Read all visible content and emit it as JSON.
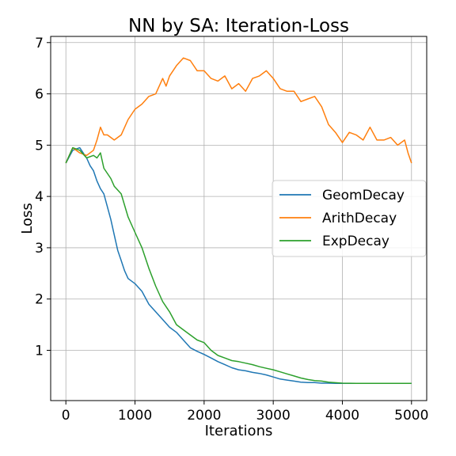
{
  "chart_data": {
    "type": "line",
    "title": "NN by SA: Iteration-Loss",
    "xlabel": "Iterations",
    "ylabel": "Loss",
    "xlim": [
      -220,
      5220
    ],
    "ylim": [
      0.02,
      7.12
    ],
    "xticks": [
      0,
      1000,
      2000,
      3000,
      4000,
      5000
    ],
    "yticks": [
      1,
      2,
      3,
      4,
      5,
      6,
      7
    ],
    "grid": true,
    "legend_position": "center-right",
    "series": [
      {
        "name": "GeomDecay",
        "color": "#1f77b4",
        "x": [
          0,
          100,
          200,
          300,
          350,
          400,
          450,
          500,
          550,
          600,
          650,
          700,
          750,
          800,
          850,
          900,
          1000,
          1100,
          1200,
          1300,
          1400,
          1500,
          1600,
          1700,
          1800,
          1900,
          2000,
          2100,
          2200,
          2300,
          2400,
          2500,
          2600,
          2700,
          2800,
          2900,
          3000,
          3100,
          3200,
          3300,
          3400,
          3500,
          3600,
          3700,
          3800,
          3900,
          4000,
          4200,
          4400,
          4600,
          4800,
          5000
        ],
        "y": [
          4.65,
          4.9,
          4.95,
          4.75,
          4.6,
          4.5,
          4.3,
          4.15,
          4.05,
          3.8,
          3.55,
          3.25,
          2.95,
          2.75,
          2.55,
          2.4,
          2.3,
          2.15,
          1.9,
          1.75,
          1.6,
          1.45,
          1.35,
          1.2,
          1.05,
          0.98,
          0.92,
          0.85,
          0.78,
          0.72,
          0.66,
          0.62,
          0.6,
          0.57,
          0.55,
          0.52,
          0.48,
          0.44,
          0.42,
          0.4,
          0.38,
          0.37,
          0.37,
          0.36,
          0.36,
          0.355,
          0.355,
          0.355,
          0.355,
          0.355,
          0.355,
          0.355
        ]
      },
      {
        "name": "ArithDecay",
        "color": "#ff7f0e",
        "x": [
          0,
          100,
          200,
          300,
          400,
          450,
          500,
          550,
          600,
          700,
          800,
          900,
          1000,
          1100,
          1200,
          1300,
          1400,
          1450,
          1500,
          1600,
          1700,
          1800,
          1900,
          2000,
          2100,
          2200,
          2300,
          2400,
          2500,
          2600,
          2700,
          2800,
          2900,
          3000,
          3100,
          3200,
          3300,
          3400,
          3500,
          3600,
          3700,
          3800,
          3900,
          4000,
          4100,
          4200,
          4300,
          4400,
          4500,
          4600,
          4700,
          4800,
          4900,
          4950,
          5000
        ],
        "y": [
          4.65,
          4.95,
          4.85,
          4.8,
          4.9,
          5.1,
          5.35,
          5.2,
          5.2,
          5.1,
          5.2,
          5.5,
          5.7,
          5.8,
          5.95,
          6.0,
          6.3,
          6.15,
          6.35,
          6.55,
          6.7,
          6.65,
          6.45,
          6.45,
          6.3,
          6.25,
          6.35,
          6.1,
          6.2,
          6.05,
          6.3,
          6.35,
          6.45,
          6.3,
          6.1,
          6.05,
          6.05,
          5.85,
          5.9,
          5.95,
          5.75,
          5.4,
          5.25,
          5.05,
          5.25,
          5.2,
          5.1,
          5.35,
          5.1,
          5.1,
          5.15,
          5.0,
          5.1,
          4.85,
          4.65
        ]
      },
      {
        "name": "ExpDecay",
        "color": "#2ca02c",
        "x": [
          0,
          100,
          200,
          300,
          400,
          450,
          500,
          550,
          600,
          650,
          700,
          800,
          900,
          1000,
          1100,
          1200,
          1300,
          1400,
          1500,
          1600,
          1700,
          1800,
          1900,
          2000,
          2100,
          2200,
          2300,
          2400,
          2500,
          2600,
          2700,
          2800,
          2900,
          3000,
          3100,
          3200,
          3300,
          3400,
          3500,
          3600,
          3700,
          3800,
          4000,
          4200,
          4400,
          4600,
          4800,
          5000
        ],
        "y": [
          4.65,
          4.95,
          4.9,
          4.75,
          4.8,
          4.75,
          4.85,
          4.55,
          4.45,
          4.35,
          4.2,
          4.05,
          3.6,
          3.3,
          3.0,
          2.6,
          2.25,
          1.95,
          1.75,
          1.5,
          1.4,
          1.3,
          1.2,
          1.15,
          1.0,
          0.9,
          0.85,
          0.8,
          0.78,
          0.75,
          0.72,
          0.68,
          0.65,
          0.62,
          0.58,
          0.54,
          0.5,
          0.46,
          0.43,
          0.41,
          0.4,
          0.38,
          0.36,
          0.355,
          0.355,
          0.355,
          0.355,
          0.355
        ]
      }
    ]
  }
}
